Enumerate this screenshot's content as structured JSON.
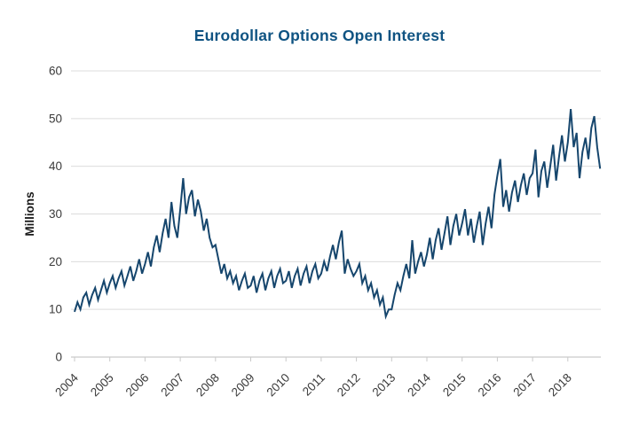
{
  "page": {
    "background_color": "#ffffff"
  },
  "chart_data": {
    "type": "line",
    "title": "Eurodollar Options Open Interest",
    "title_color": "#0f5382",
    "ylabel": "Millions",
    "xlabel": "",
    "legend_position": "none",
    "grid": "horizontal",
    "line_color": "#16466d",
    "grid_color": "#dcdcdc",
    "axis_color": "#c9c9c9",
    "tick_label_color": "#3a3a3a",
    "ylabel_color": "#1a1a1a",
    "ylim": [
      0,
      60
    ],
    "y_ticks": [
      0,
      10,
      20,
      30,
      40,
      50,
      60
    ],
    "x_tick_years": [
      2004,
      2005,
      2006,
      2007,
      2008,
      2009,
      2010,
      2011,
      2012,
      2013,
      2014,
      2015,
      2016,
      2017,
      2018
    ],
    "x_start_year": 2004,
    "points_per_year": 12,
    "series": [
      {
        "name": "Eurodollar Options Open Interest (millions of contracts)",
        "values": [
          9.5,
          11.5,
          10,
          12.5,
          13.5,
          11,
          13,
          14.5,
          12,
          14,
          16,
          13.5,
          15.5,
          17,
          14.5,
          16.5,
          18,
          15,
          17,
          19,
          16,
          18,
          20.5,
          17.5,
          19.5,
          22,
          19,
          23,
          25.5,
          22,
          26,
          29,
          25,
          32.5,
          27.5,
          25,
          31,
          37.5,
          30,
          33.5,
          35,
          29.5,
          33,
          30.5,
          26.5,
          29,
          25,
          23,
          23.5,
          20.5,
          17.5,
          19.5,
          16.5,
          18,
          15.5,
          17,
          14,
          16,
          17.5,
          14.5,
          15,
          17,
          13.5,
          16,
          17.5,
          14,
          16.5,
          18,
          14.5,
          17,
          18.5,
          15.5,
          16,
          18,
          14.5,
          17,
          18.5,
          15,
          17.5,
          19,
          15.5,
          18,
          19.5,
          16.5,
          17.5,
          20,
          18,
          21,
          23.5,
          20.5,
          24,
          26.5,
          17.5,
          20.5,
          18.5,
          17,
          18,
          19.5,
          15.5,
          17,
          14,
          15.5,
          12.5,
          14,
          11,
          12.5,
          8.5,
          10,
          10,
          13,
          15.5,
          14,
          17,
          19.5,
          16.5,
          24.5,
          17.5,
          20,
          22,
          19,
          21.5,
          25,
          20.5,
          24.5,
          27,
          22.5,
          26,
          29.5,
          23.5,
          27.5,
          30,
          25.5,
          28,
          31,
          25.5,
          29,
          24,
          27.5,
          30.5,
          23.5,
          28,
          31.5,
          27,
          34,
          38,
          41.5,
          31.5,
          35,
          30.5,
          34.5,
          37,
          32.5,
          36,
          38.5,
          34,
          37.5,
          38.5,
          43.5,
          33.5,
          39,
          41,
          35.5,
          40,
          44.5,
          37,
          42,
          46.5,
          41,
          45,
          52,
          44,
          47,
          37.5,
          43,
          46,
          41.5,
          48,
          50.5,
          44,
          39.5
        ]
      }
    ]
  }
}
